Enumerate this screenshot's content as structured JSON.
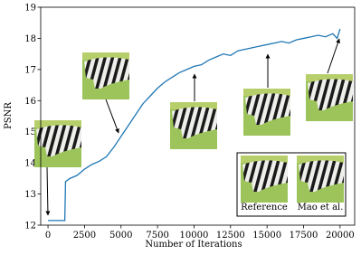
{
  "chart_data": {
    "type": "line",
    "xlabel": "Number of Iterations",
    "ylabel": "PSNR",
    "x": [
      0,
      500,
      1000,
      1150,
      1200,
      1500,
      2000,
      2500,
      3000,
      3500,
      4000,
      4500,
      5000,
      5500,
      6000,
      6500,
      7000,
      7500,
      8000,
      8500,
      9000,
      9500,
      10000,
      10500,
      11000,
      11500,
      12000,
      12500,
      13000,
      13500,
      14000,
      14500,
      15000,
      15500,
      16000,
      16500,
      17000,
      17500,
      18000,
      18500,
      19000,
      19500,
      19800,
      20000
    ],
    "values": [
      12.15,
      12.15,
      12.15,
      12.15,
      13.4,
      13.5,
      13.6,
      13.8,
      13.95,
      14.05,
      14.2,
      14.5,
      14.85,
      15.2,
      15.55,
      15.9,
      16.15,
      16.4,
      16.6,
      16.75,
      16.9,
      17.0,
      17.1,
      17.15,
      17.3,
      17.4,
      17.5,
      17.45,
      17.6,
      17.65,
      17.7,
      17.75,
      17.8,
      17.85,
      17.9,
      17.85,
      17.95,
      18.0,
      18.05,
      18.1,
      18.05,
      18.15,
      18.0,
      18.3
    ],
    "color": "#1f77b4",
    "xlim": [
      -500,
      21000
    ],
    "ylim": [
      12,
      19
    ],
    "xticks": [
      0,
      2500,
      5000,
      7500,
      10000,
      12500,
      15000,
      17500,
      20000
    ],
    "yticks": [
      12,
      13,
      14,
      15,
      16,
      17,
      18,
      19
    ],
    "annotations": [
      "Reference",
      "Mao et al."
    ]
  }
}
